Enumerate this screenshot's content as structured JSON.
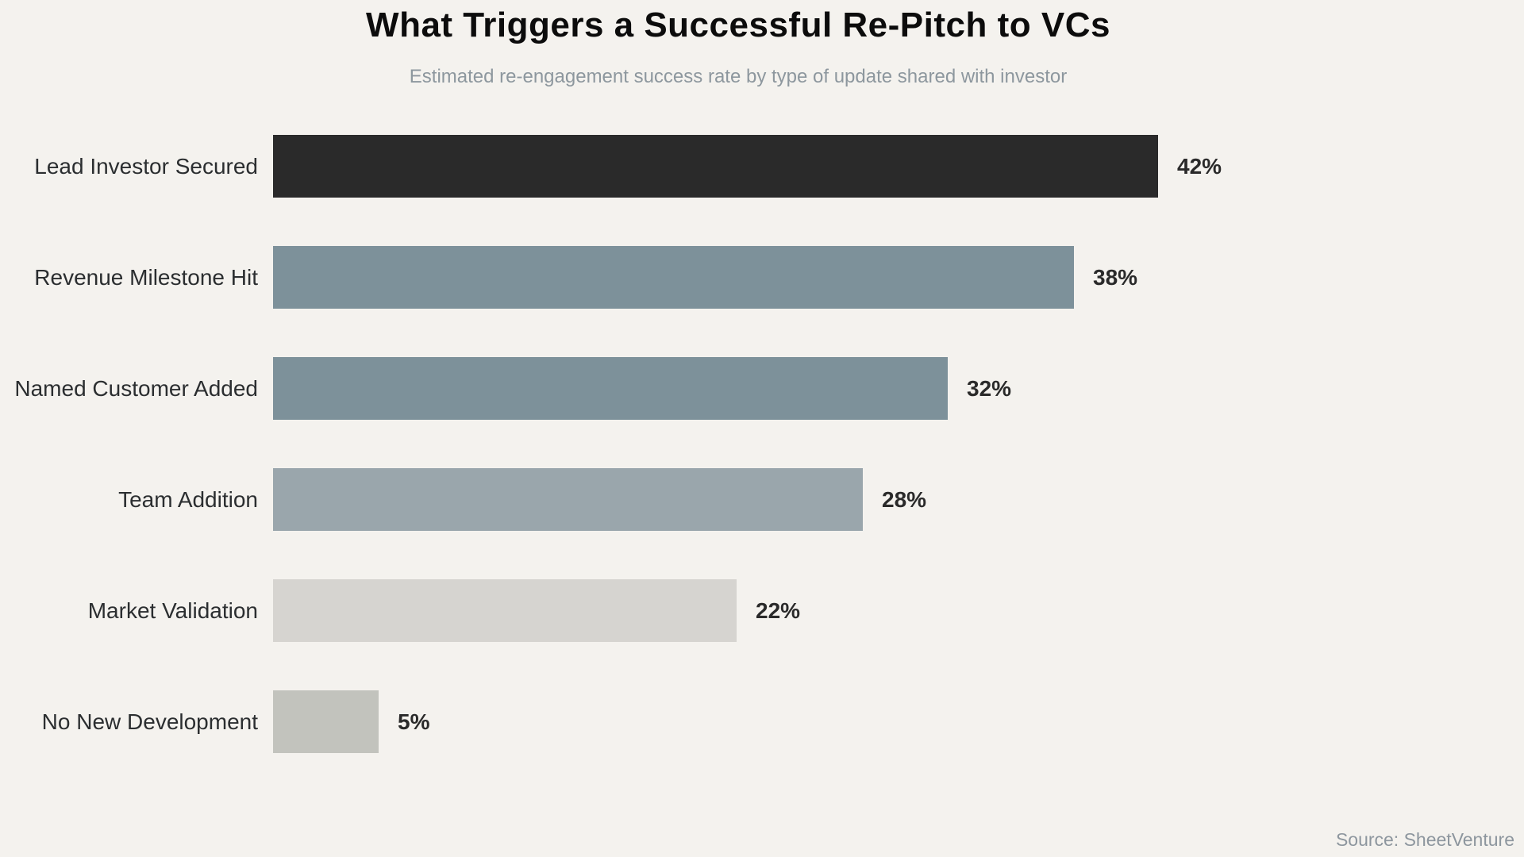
{
  "page": {
    "background": "#f4f2ee"
  },
  "header": {
    "title": "What Triggers a Successful Re-Pitch to VCs",
    "subtitle": "Estimated re-engagement success rate by type of update shared with investor"
  },
  "footer": {
    "source": "Source: SheetVenture"
  },
  "chart_data": {
    "type": "bar",
    "orientation": "horizontal",
    "title": "What Triggers a Successful Re-Pitch to VCs",
    "subtitle": "Estimated re-engagement success rate by type of update shared with investor",
    "categories": [
      "Lead Investor Secured",
      "Revenue Milestone Hit",
      "Named Customer Added",
      "Team Addition",
      "Market Validation",
      "No New Development"
    ],
    "values": [
      42,
      38,
      32,
      28,
      22,
      5
    ],
    "value_labels": [
      "42%",
      "38%",
      "32%",
      "28%",
      "22%",
      "5%"
    ],
    "value_suffix": "%",
    "bar_colors": [
      "#2a2a2a",
      "#7d919a",
      "#7d919a",
      "#9aa6ac",
      "#d6d4d0",
      "#c2c3bd"
    ],
    "xlim": [
      0,
      42
    ],
    "grid": false,
    "legend": false,
    "axes_shown": false,
    "source": "Source: SheetVenture",
    "text_colors": {
      "title": "#0c0c0c",
      "subtitle": "#8d979e",
      "category_label": "#2b2e30",
      "value_label": "#2a2a2a",
      "source": "#8d969e"
    }
  }
}
